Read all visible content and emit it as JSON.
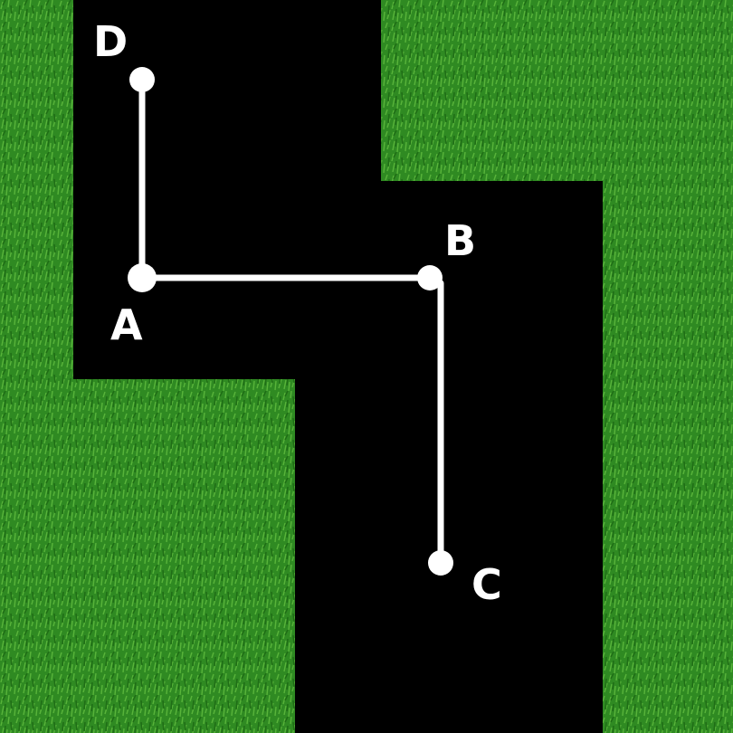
{
  "colors": {
    "grass_dark": "#1f6e16",
    "grass_mid": "#2f8a22",
    "grass_light": "#58b43a",
    "road": "#000000",
    "path": "#ffffff"
  },
  "points": [
    {
      "id": "D",
      "label": "D"
    },
    {
      "id": "A",
      "label": "A"
    },
    {
      "id": "B",
      "label": "B"
    },
    {
      "id": "C",
      "label": "C"
    }
  ],
  "segments": [
    {
      "from": "D",
      "to": "A"
    },
    {
      "from": "A",
      "to": "B"
    },
    {
      "from": "B",
      "to": "C"
    }
  ]
}
